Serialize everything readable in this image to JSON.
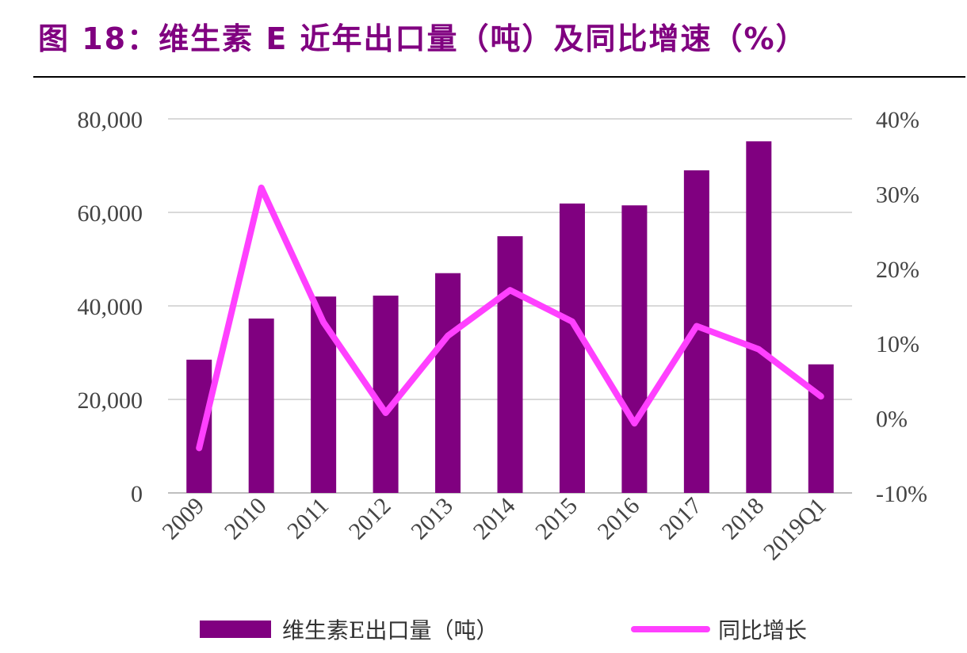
{
  "title": "图 18：维生素 E 近年出口量（吨）及同比增速（%）",
  "colors": {
    "title": "#800080",
    "bar": "#800080",
    "line": "#FF40FF",
    "grid": "#D9D9D9"
  },
  "chart_data": {
    "type": "bar+line",
    "categories": [
      "2009",
      "2010",
      "2011",
      "2012",
      "2013",
      "2014",
      "2015",
      "2016",
      "2017",
      "2018",
      "2019Q1"
    ],
    "series": [
      {
        "name": "维生素E出口量（吨）",
        "type": "bar",
        "axis": "left",
        "values": [
          28500,
          37300,
          42000,
          42200,
          47000,
          54900,
          61900,
          61500,
          69000,
          75200,
          27500
        ]
      },
      {
        "name": "同比增长",
        "type": "line",
        "axis": "right",
        "values": [
          -4.0,
          30.8,
          12.8,
          0.7,
          11.0,
          17.1,
          12.9,
          -0.7,
          12.3,
          9.2,
          2.9
        ]
      }
    ],
    "y_left": {
      "lim": [
        0,
        80000
      ],
      "ticks": [
        "0",
        "20,000",
        "40,000",
        "60,000",
        "80,000"
      ]
    },
    "y_right": {
      "lim": [
        -10,
        40
      ],
      "ticks": [
        "-10%",
        "0%",
        "10%",
        "20%",
        "30%",
        "40%"
      ]
    },
    "grid": true,
    "legend": "bottom"
  }
}
